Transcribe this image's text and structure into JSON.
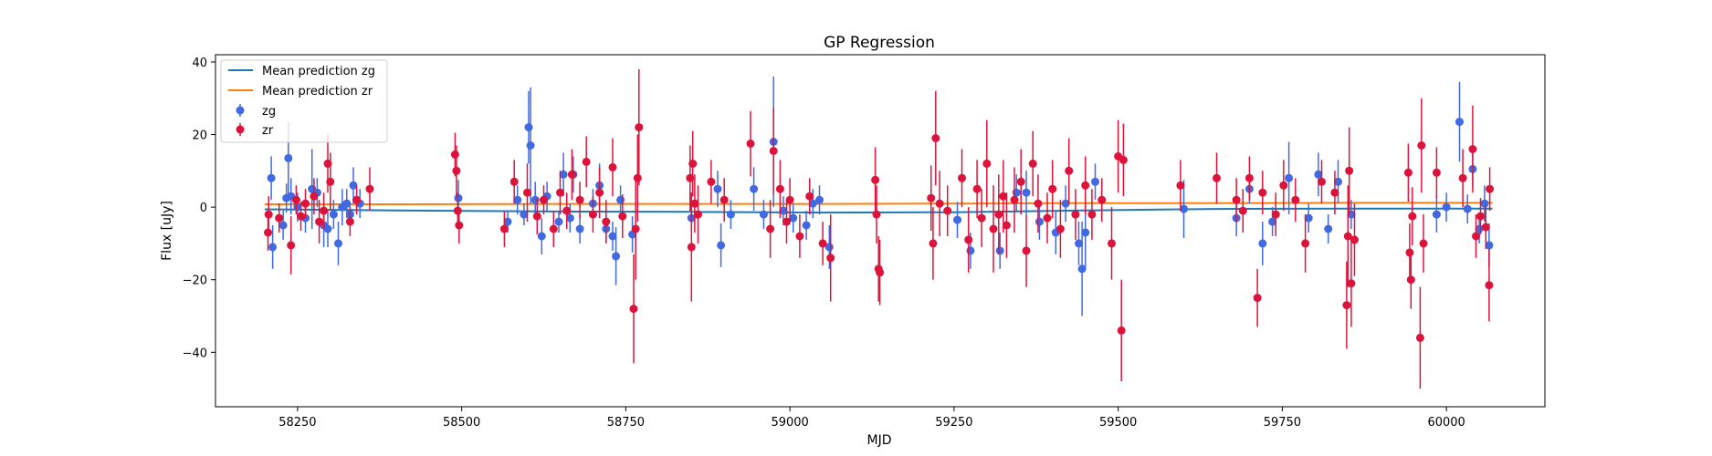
{
  "chart_data": {
    "type": "scatter",
    "title": "GP Regression",
    "xlabel": "MJD",
    "ylabel": "Flux [uJy]",
    "xlim": [
      58125,
      60150
    ],
    "ylim": [
      -55,
      42
    ],
    "xticks": [
      58250,
      58500,
      58750,
      59000,
      59250,
      59500,
      59750,
      60000
    ],
    "yticks": [
      40,
      20,
      0,
      -20,
      -40
    ],
    "grid": false,
    "legend_position": "top-left",
    "lines": [
      {
        "name": "Mean prediction zg",
        "color": "#1f77b4",
        "x": [
          58200,
          58400,
          58650,
          58850,
          59050,
          59250,
          59450,
          59650,
          59850,
          60050,
          60070
        ],
        "y": [
          -0.6,
          -0.9,
          -1.2,
          -1.3,
          -1.5,
          -1.4,
          -0.9,
          -0.5,
          -0.4,
          -0.4,
          -0.4
        ]
      },
      {
        "name": "Mean prediction zr",
        "color": "#ff7f0e",
        "x": [
          58200,
          58400,
          58650,
          58850,
          59050,
          59250,
          59450,
          59650,
          59850,
          60050,
          60070
        ],
        "y": [
          0.8,
          0.8,
          0.9,
          0.9,
          0.9,
          1.0,
          1.1,
          1.1,
          1.2,
          1.2,
          1.2
        ]
      }
    ],
    "series": [
      {
        "name": "zg",
        "color": "#4169e1",
        "points": [
          [
            58210,
            8,
            6
          ],
          [
            58212,
            -11,
            6
          ],
          [
            58228,
            -5,
            4
          ],
          [
            58233,
            2.5,
            4
          ],
          [
            58236,
            13.5,
            10
          ],
          [
            58240,
            3,
            5
          ],
          [
            58250,
            0,
            4
          ],
          [
            58262,
            -3,
            4
          ],
          [
            58272,
            5,
            11
          ],
          [
            58280,
            4,
            4
          ],
          [
            58290,
            -5,
            6
          ],
          [
            58296,
            -6,
            5
          ],
          [
            58305,
            -2,
            4
          ],
          [
            58312,
            -10,
            6
          ],
          [
            58318,
            0,
            5
          ],
          [
            58325,
            1,
            4
          ],
          [
            58330,
            -2,
            3
          ],
          [
            58335,
            6,
            5
          ],
          [
            58345,
            1,
            4
          ],
          [
            58495,
            2.5,
            5
          ],
          [
            58570,
            -4,
            3
          ],
          [
            58585,
            2,
            4
          ],
          [
            58595,
            -2,
            3
          ],
          [
            58602,
            22,
            10
          ],
          [
            58605,
            17,
            16
          ],
          [
            58612,
            2,
            5
          ],
          [
            58622,
            -8,
            5
          ],
          [
            58630,
            3,
            4
          ],
          [
            58648,
            -4,
            3
          ],
          [
            58655,
            9,
            6
          ],
          [
            58665,
            -3,
            4
          ],
          [
            58670,
            9,
            5
          ],
          [
            58680,
            -6,
            4
          ],
          [
            58700,
            1,
            4
          ],
          [
            58710,
            6,
            6
          ],
          [
            58720,
            -6,
            4
          ],
          [
            58730,
            -8,
            4
          ],
          [
            58735,
            -13.5,
            8
          ],
          [
            58742,
            2,
            4
          ],
          [
            58760,
            -7.5,
            5
          ],
          [
            58850,
            -3,
            4
          ],
          [
            58890,
            5,
            5
          ],
          [
            58895,
            -10.5,
            6
          ],
          [
            58910,
            -2,
            4
          ],
          [
            58945,
            5,
            6
          ],
          [
            58960,
            -2,
            4
          ],
          [
            58975,
            18,
            18
          ],
          [
            58990,
            -1,
            4
          ],
          [
            59005,
            -3,
            4
          ],
          [
            59025,
            -5,
            4
          ],
          [
            59035,
            1,
            4
          ],
          [
            59045,
            2,
            4
          ],
          [
            59060,
            -11,
            6
          ],
          [
            59255,
            -3.5,
            5
          ],
          [
            59275,
            -12,
            5
          ],
          [
            59320,
            -12,
            5
          ],
          [
            59345,
            4,
            5
          ],
          [
            59360,
            4,
            6
          ],
          [
            59380,
            -4,
            5
          ],
          [
            59405,
            -7,
            6
          ],
          [
            59420,
            1,
            5
          ],
          [
            59440,
            -10,
            6
          ],
          [
            59445,
            -17,
            13
          ],
          [
            59450,
            -7,
            10
          ],
          [
            59465,
            7,
            5
          ],
          [
            59600,
            -0.5,
            8
          ],
          [
            59680,
            -3,
            5
          ],
          [
            59700,
            5,
            4
          ],
          [
            59720,
            -10,
            6
          ],
          [
            59735,
            -4,
            4
          ],
          [
            59760,
            8,
            10
          ],
          [
            59790,
            -3,
            4
          ],
          [
            59805,
            9,
            6
          ],
          [
            59820,
            -6,
            4
          ],
          [
            59835,
            7,
            6
          ],
          [
            59855,
            -2,
            4
          ],
          [
            59985,
            -2,
            5
          ],
          [
            60000,
            0,
            4
          ],
          [
            60020,
            23.5,
            11
          ],
          [
            60032,
            -0.5,
            4
          ],
          [
            60040,
            10.5,
            5
          ],
          [
            60050,
            -6,
            4
          ],
          [
            60058,
            1,
            5
          ],
          [
            60065,
            -10.5,
            6
          ]
        ]
      },
      {
        "name": "zr",
        "color": "#dc143c",
        "points": [
          [
            58205,
            -7,
            5
          ],
          [
            58206,
            -2,
            5
          ],
          [
            58222,
            -3,
            4
          ],
          [
            58240,
            -10.5,
            8
          ],
          [
            58248,
            2,
            4
          ],
          [
            58255,
            -2.5,
            4
          ],
          [
            58262,
            1,
            4
          ],
          [
            58275,
            3,
            5
          ],
          [
            58283,
            -4,
            6
          ],
          [
            58290,
            -1,
            5
          ],
          [
            58296,
            12,
            8
          ],
          [
            58300,
            7,
            8
          ],
          [
            58330,
            -4,
            4
          ],
          [
            58340,
            2,
            4
          ],
          [
            58360,
            5,
            6
          ],
          [
            58490,
            14.5,
            6
          ],
          [
            58492,
            10,
            7
          ],
          [
            58494,
            -1,
            5
          ],
          [
            58496,
            -5,
            5
          ],
          [
            58565,
            -6,
            5
          ],
          [
            58580,
            7,
            6
          ],
          [
            58600,
            4,
            8
          ],
          [
            58615,
            -2.5,
            5
          ],
          [
            58625,
            2,
            4
          ],
          [
            58640,
            -6,
            5
          ],
          [
            58650,
            4,
            6
          ],
          [
            58660,
            -1,
            5
          ],
          [
            58668,
            9,
            7
          ],
          [
            58680,
            2,
            5
          ],
          [
            58690,
            12.5,
            7
          ],
          [
            58700,
            -2,
            5
          ],
          [
            58710,
            4,
            7
          ],
          [
            58720,
            -4,
            6
          ],
          [
            58730,
            11,
            8
          ],
          [
            58745,
            -2.5,
            6
          ],
          [
            58762,
            -28,
            15
          ],
          [
            58765,
            -6,
            14
          ],
          [
            58768,
            8,
            12
          ],
          [
            58770,
            22,
            16
          ],
          [
            58848,
            8,
            9
          ],
          [
            58850,
            -11,
            15
          ],
          [
            58852,
            12,
            9
          ],
          [
            58855,
            1,
            8
          ],
          [
            58860,
            -2,
            8
          ],
          [
            58880,
            7,
            6
          ],
          [
            58900,
            2,
            6
          ],
          [
            58940,
            17.5,
            9
          ],
          [
            58970,
            -6,
            8
          ],
          [
            58975,
            15.5,
            12
          ],
          [
            58985,
            5,
            8
          ],
          [
            58995,
            -4,
            6
          ],
          [
            59000,
            2,
            6
          ],
          [
            59015,
            -8,
            6
          ],
          [
            59030,
            3,
            5
          ],
          [
            59050,
            -10,
            6
          ],
          [
            59062,
            -14,
            12
          ],
          [
            59130,
            7.5,
            9
          ],
          [
            59132,
            -2,
            8
          ],
          [
            59135,
            -17,
            9
          ],
          [
            59137,
            -18,
            9
          ],
          [
            59215,
            2.5,
            9
          ],
          [
            59218,
            -10,
            10
          ],
          [
            59222,
            19,
            13
          ],
          [
            59228,
            1,
            9
          ],
          [
            59240,
            -1,
            7
          ],
          [
            59262,
            8,
            8
          ],
          [
            59272,
            -9,
            9
          ],
          [
            59285,
            5,
            8
          ],
          [
            59292,
            -3,
            8
          ],
          [
            59300,
            12,
            12
          ],
          [
            59310,
            -6,
            12
          ],
          [
            59318,
            -2,
            11
          ],
          [
            59325,
            3,
            10
          ],
          [
            59330,
            -5,
            9
          ],
          [
            59342,
            2,
            9
          ],
          [
            59352,
            7,
            9
          ],
          [
            59360,
            -12,
            10
          ],
          [
            59370,
            12,
            9
          ],
          [
            59378,
            1,
            8
          ],
          [
            59392,
            -3,
            7
          ],
          [
            59400,
            5,
            8
          ],
          [
            59412,
            -6,
            8
          ],
          [
            59425,
            10,
            9
          ],
          [
            59435,
            -2,
            7
          ],
          [
            59450,
            6,
            8
          ],
          [
            59460,
            -2,
            7
          ],
          [
            59475,
            2,
            6
          ],
          [
            59490,
            -10,
            10
          ],
          [
            59500,
            14,
            10
          ],
          [
            59505,
            -34,
            14
          ],
          [
            59508,
            13,
            10
          ],
          [
            59595,
            6,
            7
          ],
          [
            59650,
            8,
            7
          ],
          [
            59680,
            2,
            6
          ],
          [
            59690,
            -1,
            6
          ],
          [
            59700,
            8,
            6
          ],
          [
            59712,
            -25,
            8
          ],
          [
            59720,
            4,
            6
          ],
          [
            59740,
            -2,
            6
          ],
          [
            59752,
            6,
            7
          ],
          [
            59770,
            2,
            6
          ],
          [
            59785,
            -10,
            8
          ],
          [
            59810,
            7,
            6
          ],
          [
            59830,
            4,
            6
          ],
          [
            59848,
            -27,
            12
          ],
          [
            59850,
            -8,
            14
          ],
          [
            59852,
            10,
            12
          ],
          [
            59855,
            -21,
            12
          ],
          [
            59860,
            -9,
            10
          ],
          [
            59942,
            9.5,
            8
          ],
          [
            59944,
            -12.5,
            8
          ],
          [
            59946,
            -20,
            8
          ],
          [
            59948,
            -2.5,
            8
          ],
          [
            59960,
            -36,
            14
          ],
          [
            59962,
            17,
            13
          ],
          [
            59965,
            -10,
            8
          ],
          [
            59985,
            9.5,
            7
          ],
          [
            60025,
            8,
            8
          ],
          [
            60040,
            16,
            12
          ],
          [
            60045,
            -8,
            6
          ],
          [
            60052,
            -2.5,
            5
          ],
          [
            60060,
            -5.5,
            6
          ],
          [
            60065,
            -21.5,
            10
          ],
          [
            60066,
            5,
            6
          ]
        ]
      }
    ]
  }
}
